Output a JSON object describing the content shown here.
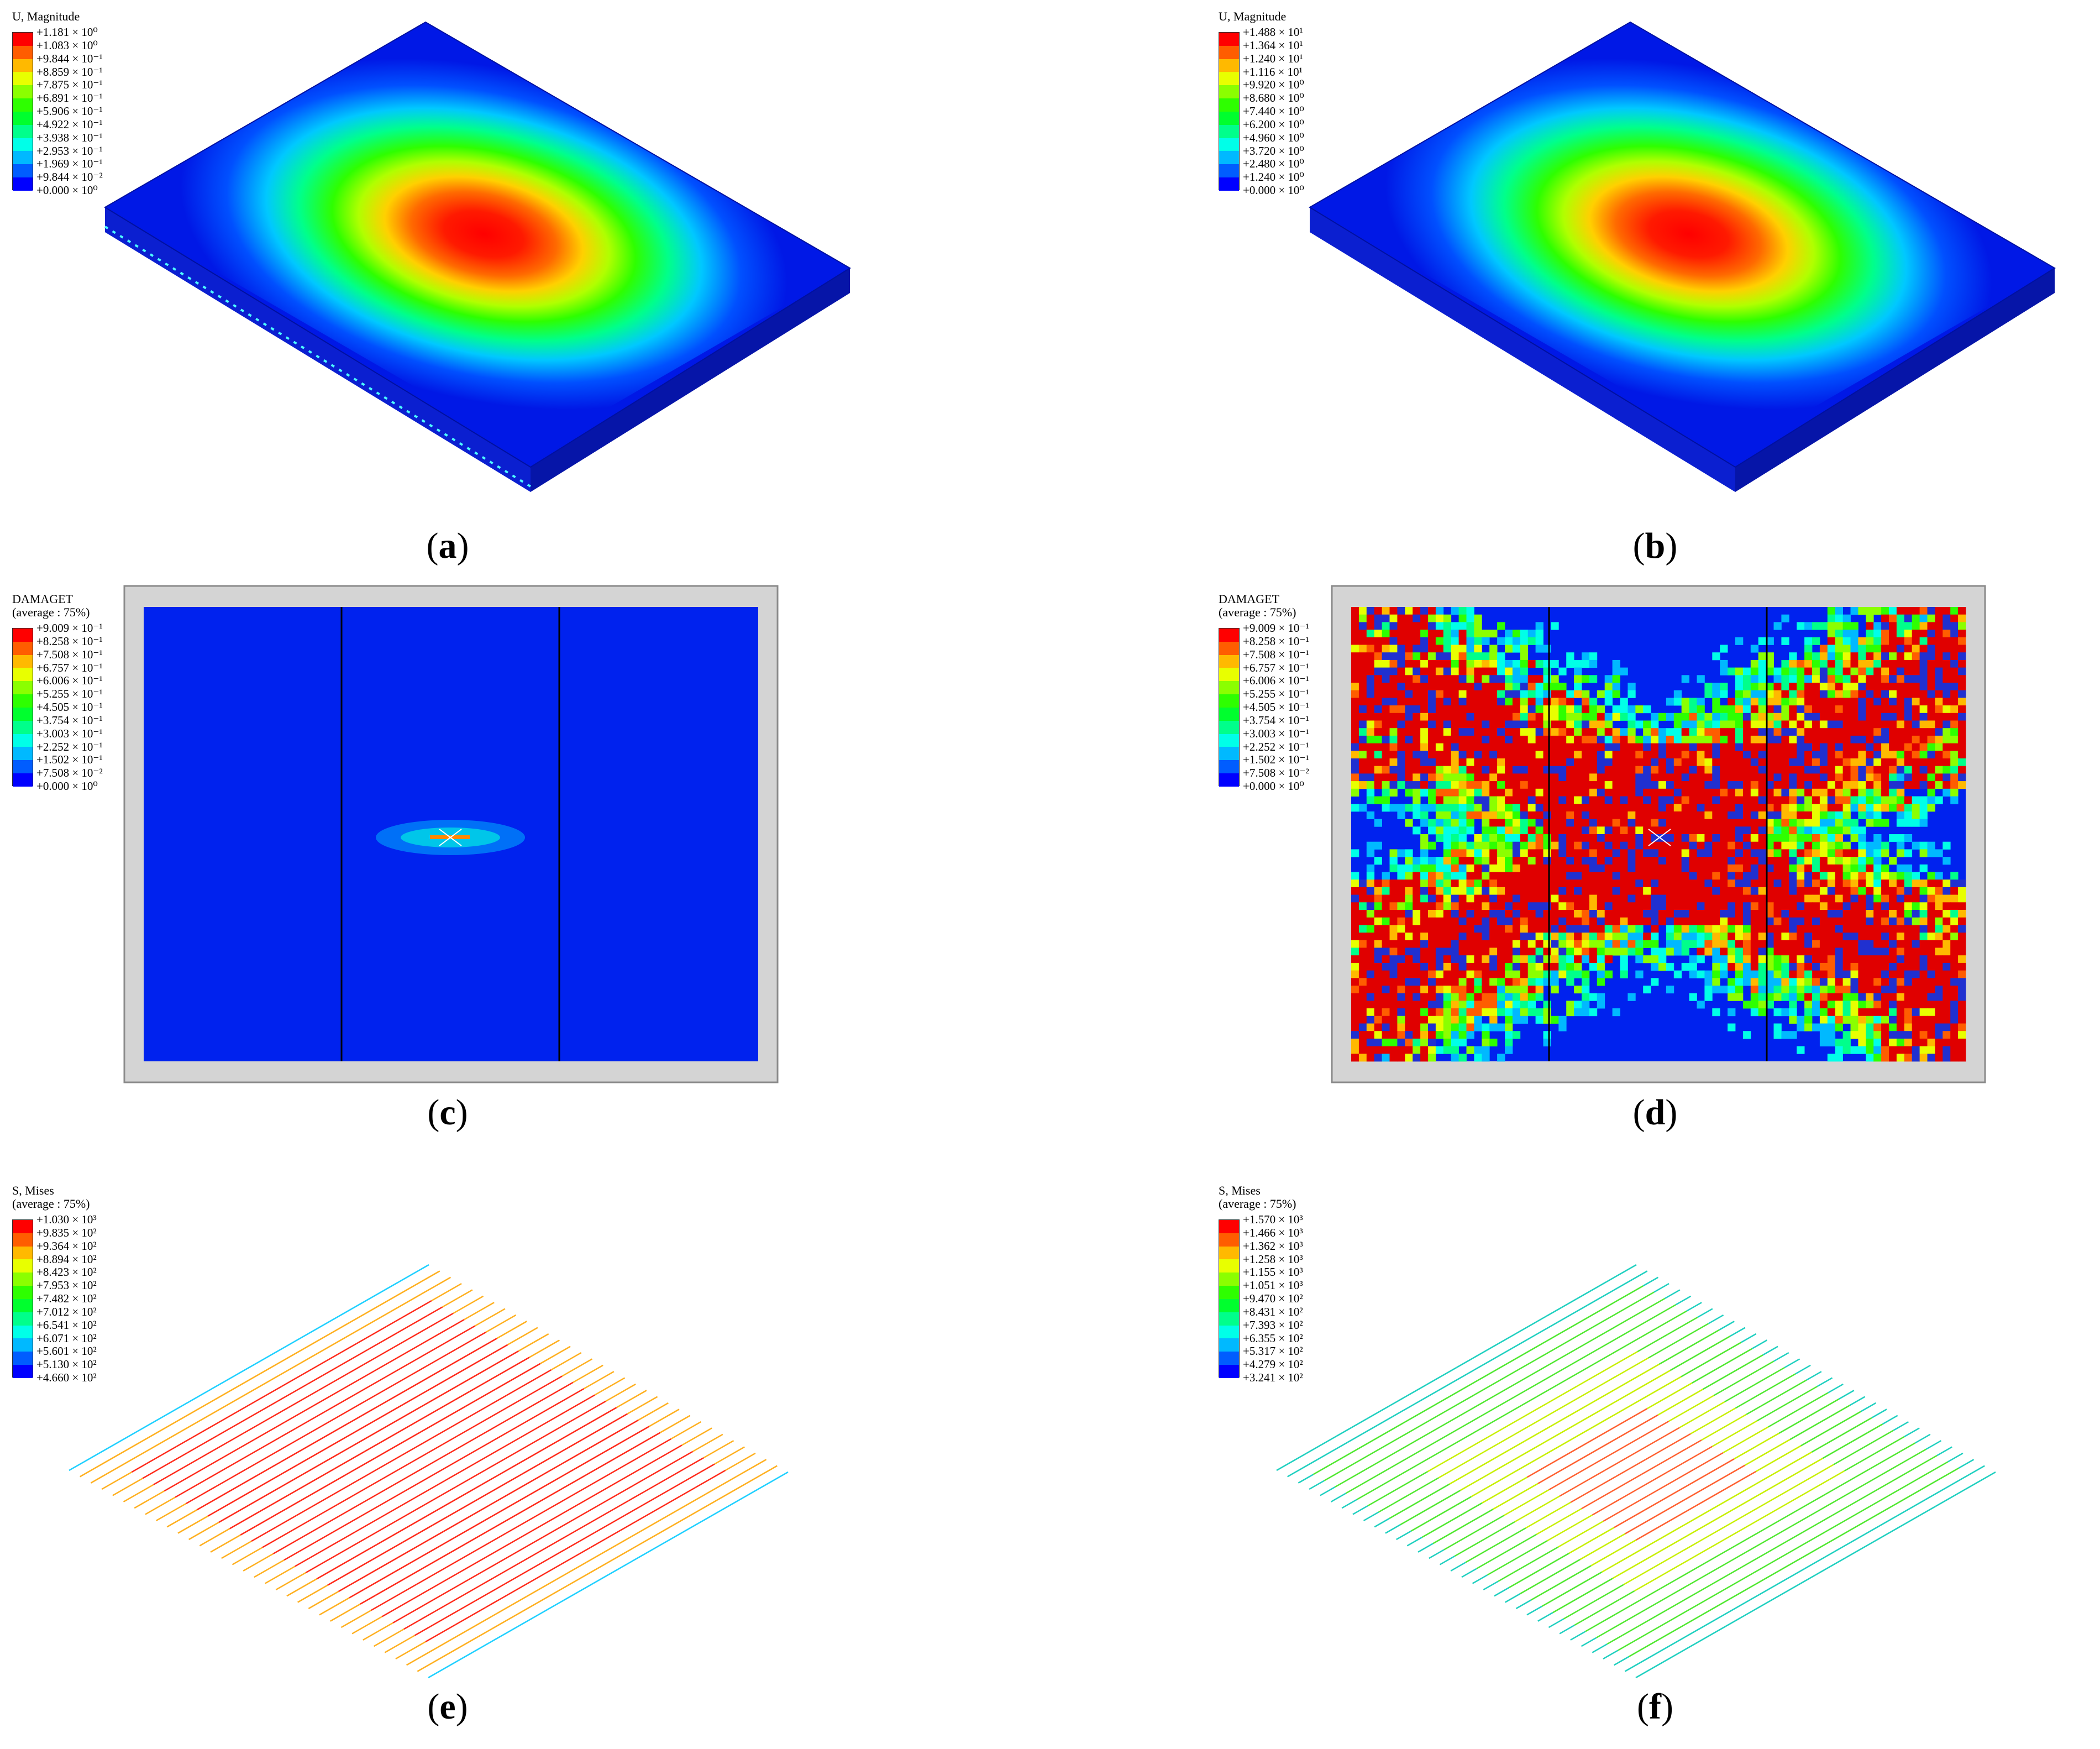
{
  "colors": {
    "contour": [
      "#0000ff",
      "#005dff",
      "#00b9ff",
      "#00ffe8",
      "#00ff8b",
      "#00ff2e",
      "#2eff00",
      "#8bff00",
      "#e8ff00",
      "#ffb900",
      "#ff5d00",
      "#ff0000"
    ],
    "plate_frame": "#d4d4d4",
    "background": "#ffffff"
  },
  "panels": [
    {
      "id": "a",
      "caption": "a",
      "legend": {
        "title": "U, Magnitude",
        "values": [
          "+1.181 × 10⁰",
          "+1.083 × 10⁰",
          "+9.844 × 10⁻¹",
          "+8.859 × 10⁻¹",
          "+7.875 × 10⁻¹",
          "+6.891 × 10⁻¹",
          "+5.906 × 10⁻¹",
          "+4.922 × 10⁻¹",
          "+3.938 × 10⁻¹",
          "+2.953 × 10⁻¹",
          "+1.969 × 10⁻¹",
          "+9.844 × 10⁻²",
          "+0.000 × 10⁰"
        ]
      }
    },
    {
      "id": "b",
      "caption": "b",
      "legend": {
        "title": "U, Magnitude",
        "values": [
          "+1.488 × 10¹",
          "+1.364 × 10¹",
          "+1.240 × 10¹",
          "+1.116 × 10¹",
          "+9.920 × 10⁰",
          "+8.680 × 10⁰",
          "+7.440 × 10⁰",
          "+6.200 × 10⁰",
          "+4.960 × 10⁰",
          "+3.720 × 10⁰",
          "+2.480 × 10⁰",
          "+1.240 × 10⁰",
          "+0.000 × 10⁰"
        ]
      }
    },
    {
      "id": "c",
      "caption": "c",
      "legend": {
        "title": "DAMAGET",
        "subtitle": "(average : 75%)",
        "values": [
          "+9.009 × 10⁻¹",
          "+8.258 × 10⁻¹",
          "+7.508 × 10⁻¹",
          "+6.757 × 10⁻¹",
          "+6.006 × 10⁻¹",
          "+5.255 × 10⁻¹",
          "+4.505 × 10⁻¹",
          "+3.754 × 10⁻¹",
          "+3.003 × 10⁻¹",
          "+2.252 × 10⁻¹",
          "+1.502 × 10⁻¹",
          "+7.508 × 10⁻²",
          "+0.000 × 10⁰"
        ]
      }
    },
    {
      "id": "d",
      "caption": "d",
      "legend": {
        "title": "DAMAGET",
        "subtitle": "(average : 75%)",
        "values": [
          "+9.009 × 10⁻¹",
          "+8.258 × 10⁻¹",
          "+7.508 × 10⁻¹",
          "+6.757 × 10⁻¹",
          "+6.006 × 10⁻¹",
          "+5.255 × 10⁻¹",
          "+4.505 × 10⁻¹",
          "+3.754 × 10⁻¹",
          "+3.003 × 10⁻¹",
          "+2.252 × 10⁻¹",
          "+1.502 × 10⁻¹",
          "+7.508 × 10⁻²",
          "+0.000 × 10⁰"
        ]
      }
    },
    {
      "id": "e",
      "caption": "e",
      "legend": {
        "title": "S, Mises",
        "subtitle": "(average : 75%)",
        "values": [
          "+1.030 × 10³",
          "+9.835 × 10²",
          "+9.364 × 10²",
          "+8.894 × 10²",
          "+8.423 × 10²",
          "+7.953 × 10²",
          "+7.482 × 10²",
          "+7.012 × 10²",
          "+6.541 × 10²",
          "+6.071 × 10²",
          "+5.601 × 10²",
          "+5.130 × 10²",
          "+4.660 × 10²"
        ]
      }
    },
    {
      "id": "f",
      "caption": "f",
      "legend": {
        "title": "S, Mises",
        "subtitle": "(average : 75%)",
        "values": [
          "+1.570 × 10³",
          "+1.466 × 10³",
          "+1.362 × 10³",
          "+1.258 × 10³",
          "+1.155 × 10³",
          "+1.051 × 10³",
          "+9.470 × 10²",
          "+8.431 × 10²",
          "+7.393 × 10²",
          "+6.355 × 10²",
          "+5.317 × 10²",
          "+4.279 × 10²",
          "+3.241 × 10²"
        ]
      }
    }
  ]
}
